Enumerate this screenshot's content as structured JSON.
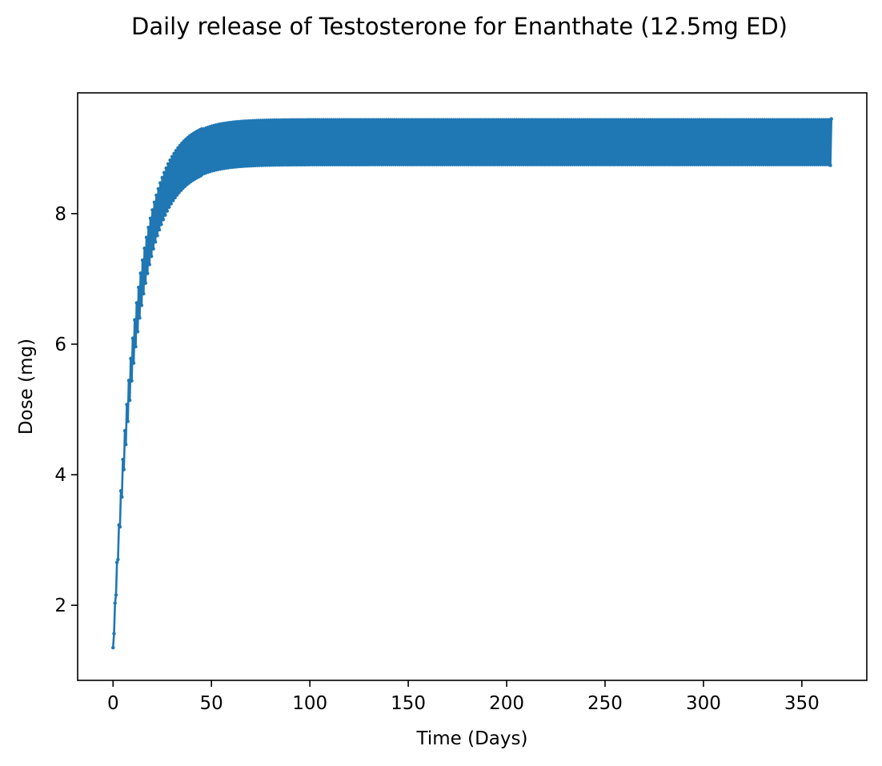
{
  "chart_data": {
    "type": "line",
    "title": "Daily release of Testosterone for Enanthate (12.5mg ED)",
    "xlabel": "Time (Days)",
    "ylabel": "Dose (mg)",
    "xlim": [
      -18,
      383
    ],
    "ylim": [
      0.85,
      9.85
    ],
    "xticks": [
      0,
      50,
      100,
      150,
      200,
      250,
      300,
      350
    ],
    "yticks": [
      2,
      4,
      6,
      8
    ],
    "grid": false,
    "legend": "none",
    "series_color": "#1f77b4",
    "x_start": 0,
    "x_end": 365,
    "x_step": 0.5,
    "series": [
      {
        "note_values": "morning/evening alternating samples; values follow the sawtooth steady state",
        "dose_mg": 12.5,
        "steady_high": 9.45,
        "steady_low": 8.74,
        "first_value": 1.35,
        "second_value": 1.25
      }
    ]
  }
}
